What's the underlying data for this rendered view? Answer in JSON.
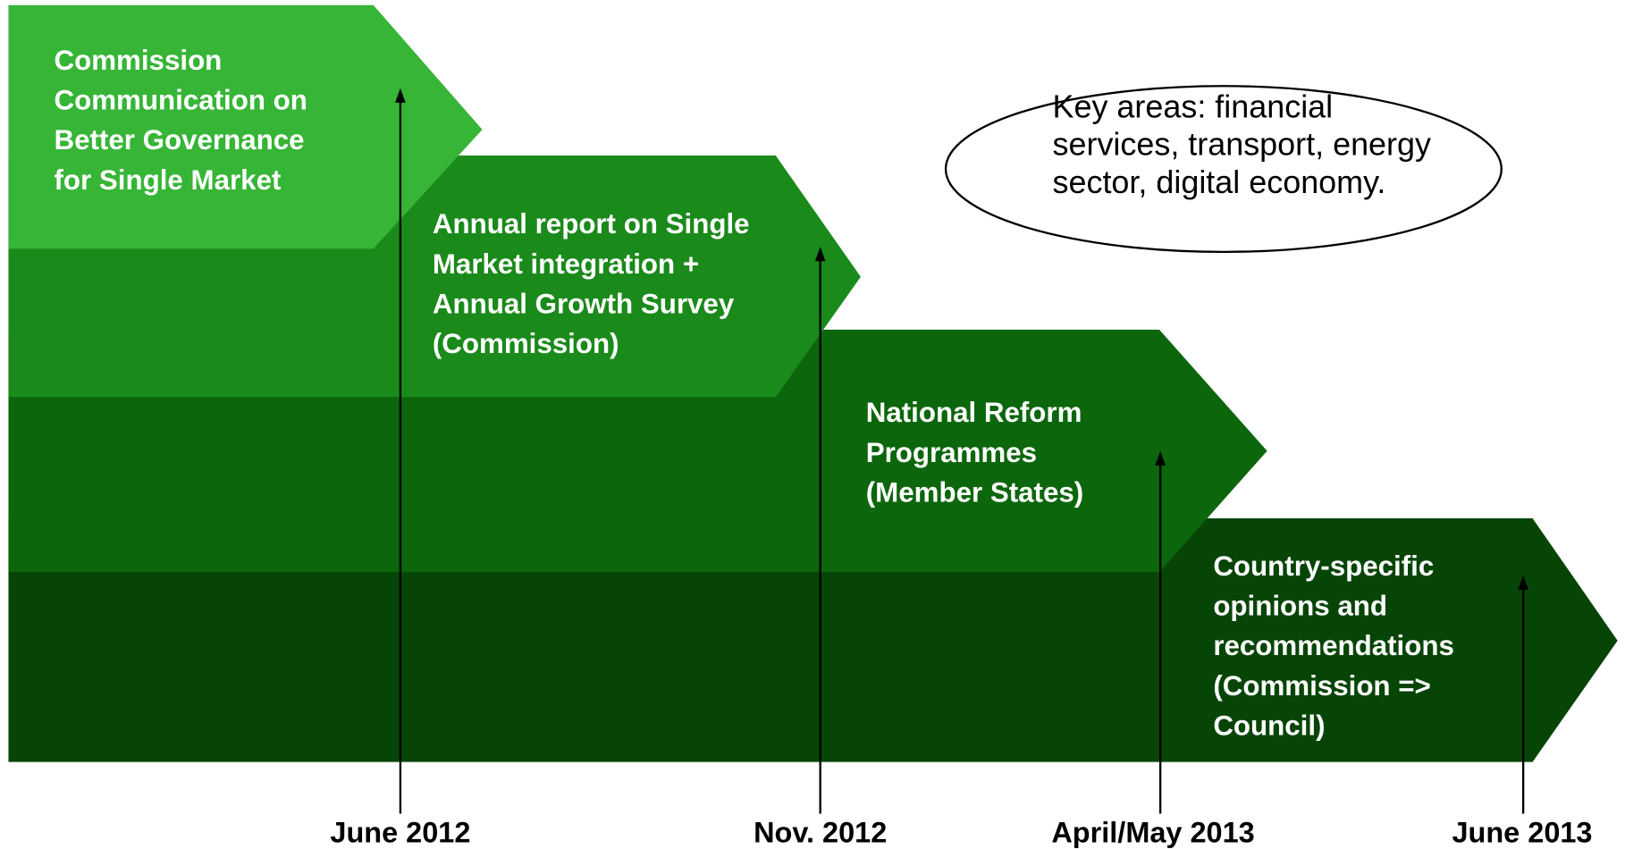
{
  "steps": [
    {
      "lines": [
        "Commission",
        "Communication on",
        "Better Governance",
        "for Single Market"
      ]
    },
    {
      "lines": [
        "Annual report on Single",
        "Market  integration +",
        "Annual Growth Survey",
        "(Commission)"
      ]
    },
    {
      "lines": [
        "National Reform",
        "Programmes",
        "(Member States)"
      ]
    },
    {
      "lines": [
        "Country-specific",
        "opinions and",
        "recommendations",
        "(Commission =>",
        "Council)"
      ]
    }
  ],
  "dates": [
    "June 2012",
    "Nov. 2012",
    "April/May 2013",
    "June 2013"
  ],
  "note": {
    "lines": [
      "Key areas: financial",
      "services, transport, energy",
      "sector, digital economy."
    ]
  }
}
